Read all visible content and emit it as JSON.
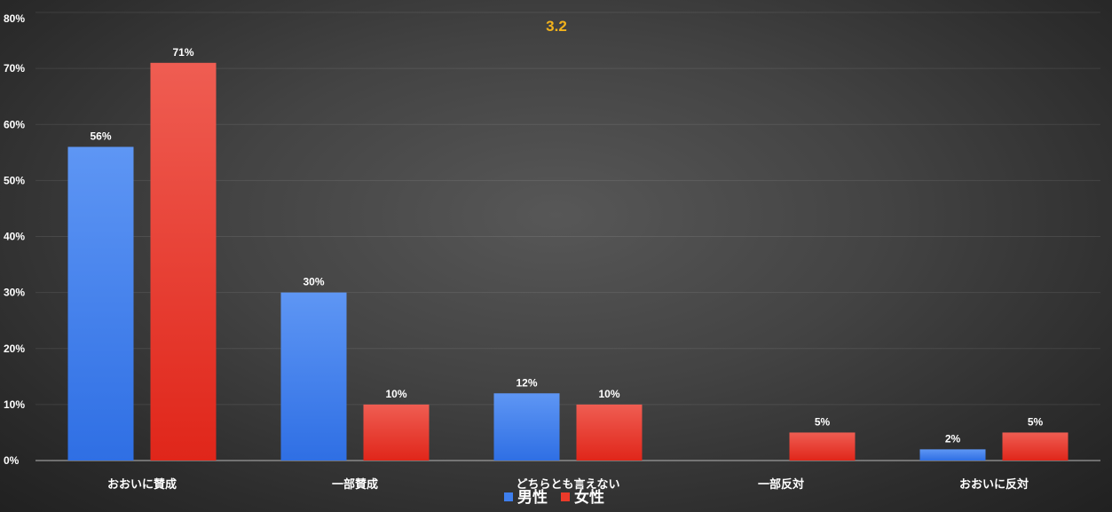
{
  "chart_data": {
    "type": "bar",
    "title": "3.2",
    "xlabel": "",
    "ylabel": "",
    "categories": [
      "おおいに賛成",
      "一部賛成",
      "どちらとも言えない",
      "一部反対",
      "おおいに反対"
    ],
    "series": [
      {
        "name": "男性",
        "color": "#3e7fee",
        "values": [
          56,
          30,
          12,
          null,
          2
        ],
        "labels": [
          "56%",
          "30%",
          "12%",
          "",
          "2%"
        ]
      },
      {
        "name": "女性",
        "color": "#ea3a2a",
        "values": [
          71,
          10,
          10,
          5,
          5
        ],
        "labels": [
          "71%",
          "10%",
          "10%",
          "5%",
          "5%"
        ]
      }
    ],
    "ylim": [
      0,
      80
    ],
    "yticks": [
      0,
      10,
      20,
      30,
      40,
      50,
      60,
      70,
      80
    ],
    "ytick_labels": [
      "0%",
      "10%",
      "20%",
      "30%",
      "40%",
      "50%",
      "60%",
      "70%",
      "80%"
    ],
    "grid": true,
    "legend_position": "bottom-center",
    "background": "dark-radial-gradient"
  }
}
